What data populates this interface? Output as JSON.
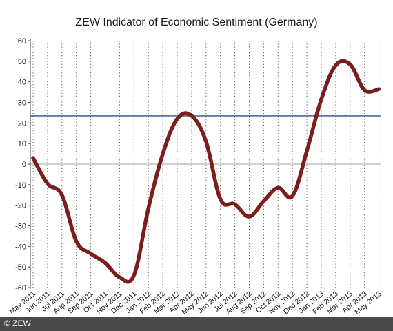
{
  "chart_data": {
    "type": "line",
    "title": "ZEW Indicator of Economic Sentiment (Germany)",
    "xlabel": "",
    "ylabel": "",
    "ylim": [
      -60,
      60
    ],
    "yticks": [
      60,
      50,
      40,
      30,
      20,
      10,
      0,
      -10,
      -20,
      -30,
      -40,
      -50,
      -60
    ],
    "grid": "vertical dotted",
    "reference_line": 23.5,
    "categories": [
      "May 2011",
      "Jun 2011",
      "Jul 2011",
      "Aug 2011",
      "Sep 2011",
      "Oct 2011",
      "Nov 2011",
      "Dec 2011",
      "Jan 2012",
      "Feb 2012",
      "Mar 2012",
      "Apr 2012",
      "May 2012",
      "Jun 2012",
      "Jul 2012",
      "Aug 2012",
      "Sep 2012",
      "Oct 2012",
      "Nov 2012",
      "Dec 2012",
      "Jan 2013",
      "Feb 2013",
      "Mar 2013",
      "Apr 2013",
      "May 2013"
    ],
    "series": [
      {
        "values": [
          3,
          -9.5,
          -15,
          -37.5,
          -43.5,
          -48,
          -55,
          -54,
          -21.5,
          5,
          22,
          23.5,
          11,
          -17,
          -19.5,
          -25.5,
          -18,
          -11.5,
          -15.5,
          6.5,
          31.5,
          48,
          48.5,
          36,
          36.5
        ]
      }
    ]
  },
  "colors": {
    "line": "#7a1e1e",
    "reference_line": "#2a4f8a",
    "zero_line": "#b5b5b5",
    "grid": "#555555"
  },
  "footer": {
    "copyright": "© ZEW"
  }
}
